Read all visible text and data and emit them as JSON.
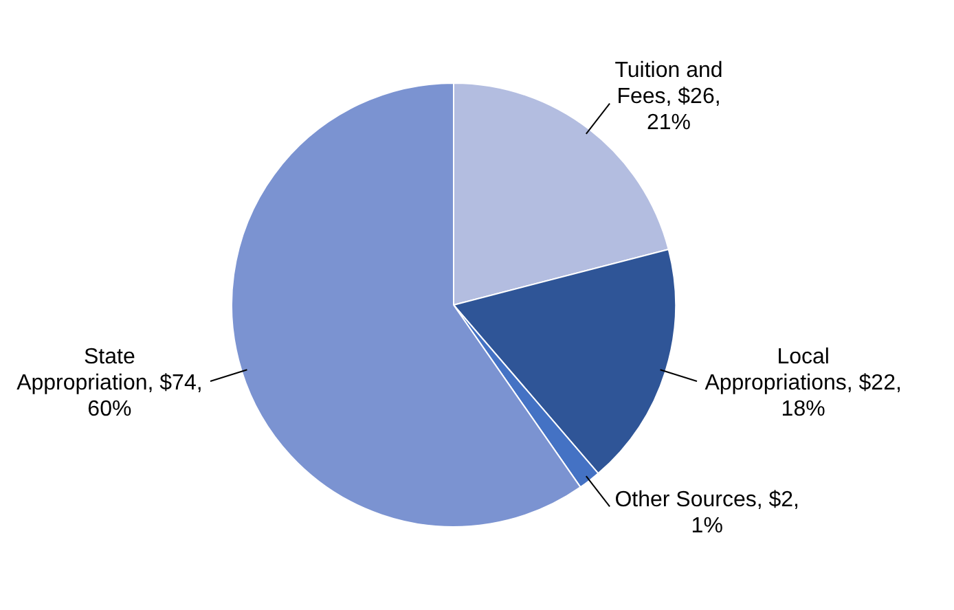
{
  "chart_data": {
    "type": "pie",
    "categories": [
      "Tuition and Fees",
      "Local Appropriations",
      "Other Sources",
      "State Appropriation"
    ],
    "values": [
      26,
      22,
      2,
      74
    ],
    "colors": [
      "#b3bde0",
      "#2f5597",
      "#4472c4",
      "#7b93d1"
    ],
    "value_labels": [
      "$26, 21%",
      "$22, 18%",
      "$2, 1%",
      "$74, 60%"
    ],
    "legend": false
  }
}
